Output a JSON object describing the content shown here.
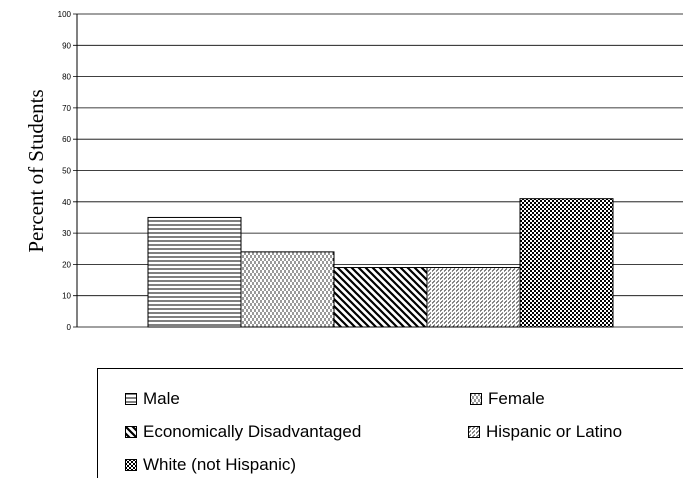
{
  "chart_data": {
    "type": "bar",
    "title": "",
    "xlabel": "",
    "ylabel": "Percent of Students",
    "ylim": [
      0,
      100
    ],
    "yticks": [
      "0",
      "10",
      "20",
      "30",
      "40",
      "50",
      "60",
      "70",
      "80",
      "90",
      "100"
    ],
    "grid": true,
    "legend_position": "bottom",
    "series": [
      {
        "name": "Male",
        "value": 35,
        "pattern": "horizontal-lines"
      },
      {
        "name": "Female",
        "value": 24,
        "pattern": "dashed-vertical"
      },
      {
        "name": "Economically Disadvantaged",
        "value": 19,
        "pattern": "diagonal-down"
      },
      {
        "name": "Hispanic or Latino",
        "value": 19,
        "pattern": "diagonal-dashed"
      },
      {
        "name": "White (not Hispanic)",
        "value": 41,
        "pattern": "checker"
      }
    ]
  }
}
